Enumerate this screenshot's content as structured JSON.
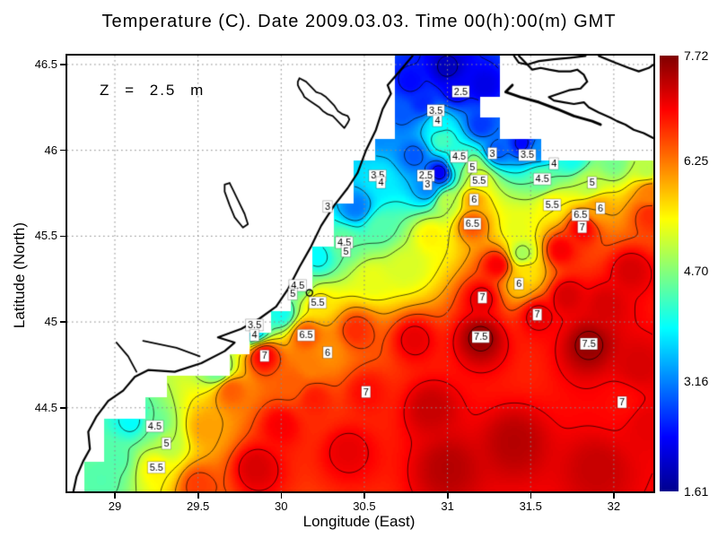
{
  "title": "Temperature (C). Date 2009.03.03. Time 00(h):00(m) GMT",
  "annotation": "Z = 2.5 m",
  "axes": {
    "xlabel": "Longitude (East)",
    "ylabel": "Latitude (North)",
    "xlim": [
      28.714,
      32.238
    ],
    "ylim": [
      44.013,
      46.552
    ],
    "x_ticks": [
      {
        "value": 29,
        "label": "29"
      },
      {
        "value": 29.5,
        "label": "29.5"
      },
      {
        "value": 30,
        "label": "30"
      },
      {
        "value": 30.5,
        "label": "30.5"
      },
      {
        "value": 31,
        "label": "31"
      },
      {
        "value": 31.5,
        "label": "31.5"
      },
      {
        "value": 32,
        "label": "32"
      }
    ],
    "y_ticks": [
      {
        "value": 46.5,
        "label": "46.5"
      },
      {
        "value": 46,
        "label": "46"
      },
      {
        "value": 45.5,
        "label": "45.5"
      },
      {
        "value": 45,
        "label": "45"
      },
      {
        "value": 44.5,
        "label": "44.5"
      }
    ],
    "grid_style": "dotted",
    "grid_color": "#8a8a8a"
  },
  "colorbar": {
    "vmin": 1.61,
    "vmax": 7.72,
    "ticks": [
      {
        "value": 7.72,
        "label": "7.72"
      },
      {
        "value": 6.25,
        "label": "6.25"
      },
      {
        "value": 4.7,
        "label": "4.70"
      },
      {
        "value": 3.16,
        "label": "3.16"
      },
      {
        "value": 1.61,
        "label": "1.61"
      }
    ],
    "colormap": [
      {
        "t": 0,
        "color": "#00008f"
      },
      {
        "t": 0.125,
        "color": "#0000ff"
      },
      {
        "t": 0.375,
        "color": "#00ffff"
      },
      {
        "t": 0.625,
        "color": "#ffff00"
      },
      {
        "t": 0.875,
        "color": "#ff0000"
      },
      {
        "t": 1,
        "color": "#800000"
      }
    ]
  },
  "chart_data": {
    "type": "heatmap",
    "subtype": "filled_contour_map",
    "field_name": "sea surface temperature (C)",
    "contour_interval": 0.5,
    "contour_levels": [
      2,
      2.5,
      3,
      3.5,
      4,
      4.5,
      5,
      5.5,
      6,
      6.5,
      7,
      7.5
    ],
    "control_points": [
      [
        30.78,
        46.4,
        2.4
      ],
      [
        31.0,
        46.48,
        1.9
      ],
      [
        31.05,
        46.35,
        2.3
      ],
      [
        30.85,
        46.28,
        2.6
      ],
      [
        31.22,
        46.38,
        2.2
      ],
      [
        31.2,
        46.15,
        2.7
      ],
      [
        30.95,
        46.15,
        3.9
      ],
      [
        30.97,
        46.06,
        4.3
      ],
      [
        30.72,
        46.22,
        2.9
      ],
      [
        30.6,
        46.1,
        3.2
      ],
      [
        30.8,
        45.97,
        2.9
      ],
      [
        31.45,
        46.04,
        2.4
      ],
      [
        31.3,
        46.0,
        2.9
      ],
      [
        31.55,
        46.0,
        3.2
      ],
      [
        31.75,
        45.95,
        4.0
      ],
      [
        32.0,
        45.93,
        4.6
      ],
      [
        32.2,
        45.9,
        5.0
      ],
      [
        32.22,
        45.75,
        6.2
      ],
      [
        32.22,
        45.62,
        6.7
      ],
      [
        31.85,
        45.8,
        5.0
      ],
      [
        31.9,
        45.66,
        6.0
      ],
      [
        31.63,
        45.68,
        5.5
      ],
      [
        31.57,
        45.83,
        4.5
      ],
      [
        31.81,
        45.55,
        7.0
      ],
      [
        30.95,
        45.87,
        2.3
      ],
      [
        30.88,
        45.78,
        3.2
      ],
      [
        31.07,
        45.94,
        4.2
      ],
      [
        31.15,
        45.9,
        5.0
      ],
      [
        31.19,
        45.82,
        5.4
      ],
      [
        31.16,
        45.71,
        6.0
      ],
      [
        31.0,
        45.7,
        5.0
      ],
      [
        31.15,
        45.57,
        6.5
      ],
      [
        30.6,
        45.83,
        3.8
      ],
      [
        30.45,
        45.67,
        3.1
      ],
      [
        30.38,
        45.46,
        4.5
      ],
      [
        30.6,
        45.55,
        4.4
      ],
      [
        30.9,
        45.5,
        5.5
      ],
      [
        30.75,
        45.32,
        5.2
      ],
      [
        30.55,
        45.25,
        5.3
      ],
      [
        30.22,
        45.38,
        3.9
      ],
      [
        30.1,
        45.21,
        4.5
      ],
      [
        30.0,
        45.05,
        4.0
      ],
      [
        29.84,
        44.96,
        3.6
      ],
      [
        30.22,
        45.11,
        5.6
      ],
      [
        30.15,
        44.92,
        6.5
      ],
      [
        30.28,
        44.82,
        6.1
      ],
      [
        30.18,
        44.75,
        6.2
      ],
      [
        30.06,
        44.64,
        6.4
      ],
      [
        29.9,
        44.8,
        7.0
      ],
      [
        29.7,
        44.6,
        6.4
      ],
      [
        29.62,
        44.72,
        4.5
      ],
      [
        29.55,
        44.38,
        6.0
      ],
      [
        29.31,
        44.29,
        5.0
      ],
      [
        29.24,
        44.39,
        4.5
      ],
      [
        29.1,
        44.42,
        3.9
      ],
      [
        29.25,
        44.15,
        5.5
      ],
      [
        29.0,
        44.2,
        4.4
      ],
      [
        28.92,
        44.08,
        4.4
      ],
      [
        29.5,
        44.05,
        6.6
      ],
      [
        29.85,
        44.15,
        7.2
      ],
      [
        30.45,
        44.95,
        6.7
      ],
      [
        30.8,
        44.9,
        7.1
      ],
      [
        31.42,
        45.55,
        5.3
      ],
      [
        31.45,
        45.4,
        4.9
      ],
      [
        31.48,
        45.28,
        5.6
      ],
      [
        31.43,
        45.22,
        5.8
      ],
      [
        31.68,
        45.42,
        7.0
      ],
      [
        31.3,
        45.33,
        7.0
      ],
      [
        31.72,
        45.15,
        7.2
      ],
      [
        31.2,
        44.91,
        7.6
      ],
      [
        31.85,
        44.87,
        7.6
      ],
      [
        31.21,
        45.14,
        7.1
      ],
      [
        31.54,
        45.04,
        7.1
      ],
      [
        31.95,
        45.1,
        7.2
      ],
      [
        32.1,
        45.3,
        7.2
      ],
      [
        32.15,
        44.75,
        7.2
      ],
      [
        32.05,
        44.53,
        6.9
      ],
      [
        32.2,
        44.4,
        7.1
      ],
      [
        30.51,
        44.59,
        6.9
      ],
      [
        30.9,
        44.5,
        7.3
      ],
      [
        31.4,
        44.3,
        7.4
      ],
      [
        30.4,
        44.25,
        7.1
      ],
      [
        31.0,
        44.15,
        7.4
      ],
      [
        31.9,
        44.15,
        7.3
      ],
      [
        30.2,
        44.55,
        6.8
      ],
      [
        30.0,
        44.4,
        7.0
      ]
    ],
    "contour_labels": [
      [
        31.08,
        46.34,
        "2.5"
      ],
      [
        30.93,
        46.23,
        "3.5"
      ],
      [
        30.94,
        46.17,
        "4"
      ],
      [
        31.07,
        45.96,
        "4.5"
      ],
      [
        31.15,
        45.9,
        "5"
      ],
      [
        31.19,
        45.82,
        "5.5"
      ],
      [
        31.16,
        45.71,
        "6"
      ],
      [
        31.27,
        45.98,
        "3"
      ],
      [
        31.48,
        45.97,
        "3.5"
      ],
      [
        31.64,
        45.92,
        "4"
      ],
      [
        31.57,
        45.83,
        "4.5"
      ],
      [
        31.87,
        45.81,
        "5"
      ],
      [
        30.87,
        45.85,
        "2.5"
      ],
      [
        30.88,
        45.8,
        "3"
      ],
      [
        30.58,
        45.85,
        "3.5"
      ],
      [
        30.6,
        45.81,
        "4"
      ],
      [
        31.63,
        45.68,
        "5.5"
      ],
      [
        31.92,
        45.66,
        "6"
      ],
      [
        31.8,
        45.62,
        "6.5"
      ],
      [
        31.81,
        45.55,
        "7"
      ],
      [
        30.28,
        45.67,
        "3"
      ],
      [
        30.38,
        45.46,
        "4.5"
      ],
      [
        30.39,
        45.41,
        "5"
      ],
      [
        30.1,
        45.21,
        "4.5"
      ],
      [
        30.07,
        45.16,
        "5"
      ],
      [
        30.22,
        45.11,
        "5.5"
      ],
      [
        29.84,
        44.98,
        "3.5"
      ],
      [
        29.84,
        44.92,
        "4"
      ],
      [
        30.15,
        44.92,
        "6.5"
      ],
      [
        30.28,
        44.82,
        "6"
      ],
      [
        29.9,
        44.8,
        "7"
      ],
      [
        31.15,
        45.57,
        "6.5"
      ],
      [
        31.43,
        45.22,
        "6"
      ],
      [
        31.21,
        45.14,
        "7"
      ],
      [
        31.54,
        45.04,
        "7"
      ],
      [
        31.2,
        44.91,
        "7.5"
      ],
      [
        31.85,
        44.87,
        "7.5"
      ],
      [
        32.05,
        44.53,
        "7"
      ],
      [
        30.51,
        44.59,
        "7"
      ],
      [
        29.24,
        44.39,
        "4.5"
      ],
      [
        29.31,
        44.29,
        "5"
      ],
      [
        29.25,
        44.15,
        "5.5"
      ]
    ],
    "sea_mask": {
      "lon_start": 28.75,
      "lat_start": 46.5,
      "dlon": 0.125,
      "dlat": 0.125,
      "rows": [
        [
          16,
          20
        ],
        [
          16,
          20
        ],
        [
          16,
          19
        ],
        [
          16,
          20
        ],
        [
          15,
          22
        ],
        [
          14,
          28
        ],
        [
          14,
          28
        ],
        [
          13,
          28
        ],
        [
          13,
          28
        ],
        [
          12,
          28
        ],
        [
          12,
          28
        ],
        [
          11,
          28
        ],
        [
          10,
          28
        ],
        [
          9,
          28
        ],
        [
          8,
          28
        ],
        [
          5,
          28
        ],
        [
          4,
          28
        ],
        [
          2,
          28
        ],
        [
          2,
          28
        ],
        [
          1,
          28
        ],
        [
          1,
          28
        ]
      ]
    },
    "station_marker": {
      "lon": 30.17,
      "lat": 45.17
    },
    "coastlines": [
      {
        "name": "west-coast",
        "width": 2.2,
        "points": [
          [
            30.79,
            46.55
          ],
          [
            30.72,
            46.47
          ],
          [
            30.64,
            46.38
          ],
          [
            30.66,
            46.33
          ],
          [
            30.61,
            46.24
          ],
          [
            30.57,
            46.12
          ],
          [
            30.51,
            46.0
          ],
          [
            30.46,
            45.87
          ],
          [
            30.4,
            45.78
          ],
          [
            30.32,
            45.68
          ],
          [
            30.24,
            45.56
          ],
          [
            30.18,
            45.44
          ],
          [
            30.11,
            45.32
          ],
          [
            30.04,
            45.19
          ],
          [
            29.97,
            45.09
          ],
          [
            29.87,
            45.02
          ],
          [
            29.76,
            44.96
          ],
          [
            29.62,
            44.91
          ],
          [
            29.72,
            44.88
          ],
          [
            29.66,
            44.83
          ],
          [
            29.52,
            44.76
          ],
          [
            29.36,
            44.71
          ],
          [
            29.2,
            44.72
          ],
          [
            29.12,
            44.68
          ],
          [
            29.05,
            44.6
          ],
          [
            28.96,
            44.54
          ],
          [
            28.89,
            44.45
          ],
          [
            28.84,
            44.36
          ],
          [
            28.85,
            44.26
          ],
          [
            28.81,
            44.19
          ],
          [
            28.77,
            44.1
          ],
          [
            28.75,
            44.01
          ]
        ]
      },
      {
        "name": "danube-delta-branch-1",
        "width": 1.8,
        "points": [
          [
            29.01,
            44.88
          ],
          [
            29.08,
            44.8
          ],
          [
            29.13,
            44.71
          ]
        ]
      },
      {
        "name": "danube-delta-branch-2",
        "width": 1.8,
        "points": [
          [
            29.17,
            44.89
          ],
          [
            29.37,
            44.85
          ],
          [
            29.51,
            44.8
          ]
        ]
      },
      {
        "name": "liman-south",
        "width": 1.8,
        "points": [
          [
            29.69,
            45.81
          ],
          [
            29.71,
            45.77
          ],
          [
            29.74,
            45.71
          ],
          [
            29.78,
            45.63
          ],
          [
            29.8,
            45.57
          ],
          [
            29.77,
            45.55
          ],
          [
            29.72,
            45.61
          ],
          [
            29.69,
            45.68
          ],
          [
            29.66,
            45.76
          ],
          [
            29.66,
            45.8
          ],
          [
            29.69,
            45.81
          ]
        ]
      },
      {
        "name": "liman-north",
        "width": 1.8,
        "points": [
          [
            30.11,
            46.42
          ],
          [
            30.15,
            46.4
          ],
          [
            30.18,
            46.37
          ],
          [
            30.21,
            46.34
          ],
          [
            30.24,
            46.33
          ],
          [
            30.27,
            46.31
          ],
          [
            30.29,
            46.29
          ],
          [
            30.32,
            46.26
          ],
          [
            30.34,
            46.23
          ],
          [
            30.37,
            46.21
          ],
          [
            30.4,
            46.2
          ],
          [
            30.41,
            46.18
          ],
          [
            30.4,
            46.16
          ],
          [
            30.38,
            46.13
          ],
          [
            30.35,
            46.16
          ],
          [
            30.33,
            46.18
          ],
          [
            30.31,
            46.2
          ],
          [
            30.28,
            46.21
          ],
          [
            30.25,
            46.23
          ],
          [
            30.23,
            46.25
          ],
          [
            30.2,
            46.27
          ],
          [
            30.17,
            46.29
          ],
          [
            30.14,
            46.31
          ],
          [
            30.13,
            46.33
          ],
          [
            30.11,
            46.36
          ],
          [
            30.1,
            46.38
          ],
          [
            30.1,
            46.4
          ],
          [
            30.11,
            46.42
          ]
        ]
      },
      {
        "name": "kinburn-coast",
        "width": 2.2,
        "points": [
          [
            31.43,
            46.55
          ],
          [
            31.48,
            46.5
          ],
          [
            31.51,
            46.47
          ],
          [
            31.56,
            46.48
          ],
          [
            31.61,
            46.47
          ],
          [
            31.67,
            46.46
          ],
          [
            31.74,
            46.46
          ],
          [
            31.78,
            46.47
          ],
          [
            31.82,
            46.44
          ],
          [
            31.84,
            46.4
          ],
          [
            31.8,
            46.36
          ],
          [
            31.73,
            46.35
          ],
          [
            31.67,
            46.33
          ],
          [
            31.61,
            46.31
          ],
          [
            31.64,
            46.29
          ],
          [
            31.7,
            46.28
          ],
          [
            31.76,
            46.27
          ],
          [
            31.82,
            46.28
          ],
          [
            31.85,
            46.25
          ],
          [
            31.91,
            46.22
          ],
          [
            31.98,
            46.19
          ],
          [
            32.02,
            46.17
          ],
          [
            32.07,
            46.15
          ],
          [
            32.12,
            46.12
          ],
          [
            32.18,
            46.1
          ],
          [
            32.24,
            46.07
          ]
        ]
      },
      {
        "name": "top-coast-1",
        "width": 2.2,
        "points": [
          [
            31.4,
            46.55
          ],
          [
            31.43,
            46.51
          ],
          [
            31.48,
            46.5
          ],
          [
            31.55,
            46.52
          ],
          [
            31.64,
            46.53
          ],
          [
            31.74,
            46.54
          ],
          [
            31.83,
            46.55
          ]
        ]
      },
      {
        "name": "top-coast-2",
        "width": 2.2,
        "points": [
          [
            31.91,
            46.55
          ],
          [
            32.01,
            46.51
          ],
          [
            32.09,
            46.48
          ],
          [
            32.15,
            46.46
          ],
          [
            32.21,
            46.48
          ],
          [
            32.24,
            46.5
          ]
        ]
      },
      {
        "name": "tendra-spit",
        "width": 3,
        "points": [
          [
            31.39,
            46.38
          ],
          [
            31.35,
            46.34
          ],
          [
            31.44,
            46.31
          ],
          [
            31.55,
            46.28
          ],
          [
            31.66,
            46.24
          ],
          [
            31.76,
            46.2
          ],
          [
            31.87,
            46.17
          ],
          [
            31.92,
            46.15
          ]
        ]
      }
    ]
  }
}
